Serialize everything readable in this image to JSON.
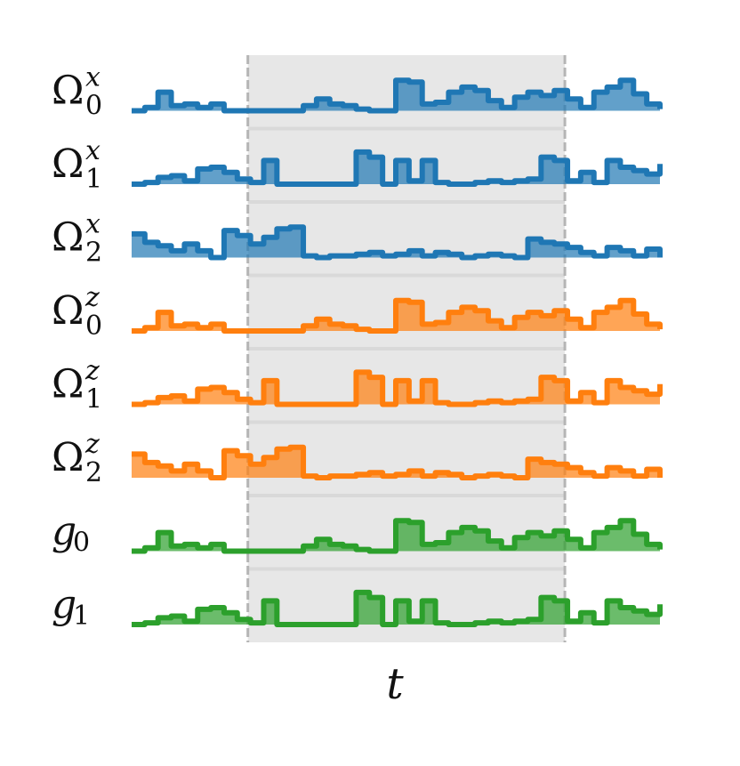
{
  "chart_data": {
    "type": "line",
    "title": "",
    "xlabel": "t",
    "ylabel": "",
    "shaded_region": [
      0.22,
      0.82
    ],
    "x": [
      0,
      0.025,
      0.05,
      0.075,
      0.1,
      0.125,
      0.15,
      0.175,
      0.2,
      0.225,
      0.25,
      0.275,
      0.3,
      0.325,
      0.35,
      0.375,
      0.4,
      0.425,
      0.45,
      0.475,
      0.5,
      0.525,
      0.55,
      0.575,
      0.6,
      0.625,
      0.65,
      0.675,
      0.7,
      0.725,
      0.75,
      0.775,
      0.8,
      0.825,
      0.85,
      0.875,
      0.9,
      0.925,
      0.95,
      0.975,
      1.0
    ],
    "series": [
      {
        "name": "Ω",
        "sup": "x",
        "sub": "0",
        "color": "#1f77b4",
        "values": [
          0,
          0.1,
          0.55,
          0.15,
          0.2,
          0.1,
          0.2,
          0,
          0,
          0,
          0,
          0,
          0,
          0.15,
          0.35,
          0.2,
          0.15,
          0.05,
          0,
          0,
          0.9,
          0.85,
          0.2,
          0.25,
          0.55,
          0.7,
          0.6,
          0.3,
          0.1,
          0.4,
          0.55,
          0.45,
          0.6,
          0.35,
          0.1,
          0.55,
          0.7,
          0.9,
          0.5,
          0.2,
          0.05
        ]
      },
      {
        "name": "Ω",
        "sup": "x",
        "sub": "1",
        "color": "#1f77b4",
        "values": [
          0,
          0.05,
          0.2,
          0.25,
          0.1,
          0.45,
          0.5,
          0.35,
          0.15,
          0.05,
          0.7,
          0,
          0,
          0,
          0,
          0,
          0,
          0.95,
          0.8,
          0,
          0.7,
          0.1,
          0.7,
          0.05,
          0,
          0,
          0.05,
          0.1,
          0.05,
          0.1,
          0.15,
          0.8,
          0.7,
          0.1,
          0.35,
          0.05,
          0.7,
          0.5,
          0.4,
          0.3,
          0.6
        ]
      },
      {
        "name": "Ω",
        "sup": "x",
        "sub": "2",
        "color": "#1f77b4",
        "values": [
          0.7,
          0.45,
          0.35,
          0.2,
          0.4,
          0.2,
          0,
          0.8,
          0.65,
          0.4,
          0.6,
          0.85,
          0.9,
          0.05,
          0,
          0.05,
          0.05,
          0.1,
          0.15,
          0.05,
          0.1,
          0.2,
          0.05,
          0.15,
          0.1,
          0,
          0.05,
          0.1,
          0.05,
          0,
          0.55,
          0.45,
          0.4,
          0.3,
          0.15,
          0.05,
          0.3,
          0.2,
          0.05,
          0.25,
          0
        ]
      },
      {
        "name": "Ω",
        "sup": "z",
        "sub": "0",
        "color": "#ff7f0e",
        "values": [
          0,
          0.1,
          0.55,
          0.15,
          0.2,
          0.1,
          0.2,
          0,
          0,
          0,
          0,
          0,
          0,
          0.15,
          0.35,
          0.2,
          0.15,
          0.05,
          0,
          0,
          0.9,
          0.85,
          0.2,
          0.25,
          0.55,
          0.7,
          0.6,
          0.3,
          0.1,
          0.4,
          0.55,
          0.45,
          0.6,
          0.35,
          0.1,
          0.55,
          0.7,
          0.9,
          0.5,
          0.2,
          0.05
        ]
      },
      {
        "name": "Ω",
        "sup": "z",
        "sub": "1",
        "color": "#ff7f0e",
        "values": [
          0,
          0.05,
          0.2,
          0.25,
          0.1,
          0.45,
          0.5,
          0.35,
          0.15,
          0.05,
          0.7,
          0,
          0,
          0,
          0,
          0,
          0,
          0.95,
          0.8,
          0,
          0.7,
          0.1,
          0.7,
          0.05,
          0,
          0,
          0.05,
          0.1,
          0.05,
          0.1,
          0.15,
          0.8,
          0.7,
          0.1,
          0.35,
          0.05,
          0.7,
          0.5,
          0.4,
          0.3,
          0.6
        ]
      },
      {
        "name": "Ω",
        "sup": "z",
        "sub": "2",
        "color": "#ff7f0e",
        "values": [
          0.7,
          0.45,
          0.35,
          0.2,
          0.4,
          0.2,
          0,
          0.8,
          0.65,
          0.4,
          0.6,
          0.85,
          0.9,
          0.05,
          0,
          0.05,
          0.05,
          0.1,
          0.15,
          0.05,
          0.1,
          0.2,
          0.05,
          0.15,
          0.1,
          0,
          0.05,
          0.1,
          0.05,
          0,
          0.55,
          0.45,
          0.4,
          0.3,
          0.15,
          0.05,
          0.3,
          0.2,
          0.05,
          0.25,
          0
        ]
      },
      {
        "name": "g",
        "sup": "",
        "sub": "0",
        "color": "#2ca02c",
        "values": [
          0,
          0.1,
          0.55,
          0.15,
          0.2,
          0.1,
          0.2,
          0,
          0,
          0,
          0,
          0,
          0,
          0.15,
          0.35,
          0.2,
          0.15,
          0.05,
          0,
          0,
          0.9,
          0.85,
          0.2,
          0.25,
          0.55,
          0.7,
          0.6,
          0.3,
          0.1,
          0.4,
          0.55,
          0.45,
          0.6,
          0.35,
          0.1,
          0.55,
          0.7,
          0.9,
          0.5,
          0.2,
          0.05
        ]
      },
      {
        "name": "g",
        "sup": "",
        "sub": "1",
        "color": "#2ca02c",
        "values": [
          0,
          0.05,
          0.2,
          0.25,
          0.1,
          0.45,
          0.5,
          0.35,
          0.15,
          0.05,
          0.7,
          0,
          0,
          0,
          0,
          0,
          0,
          0.95,
          0.8,
          0,
          0.7,
          0.1,
          0.7,
          0.05,
          0,
          0,
          0.05,
          0.1,
          0.05,
          0.1,
          0.15,
          0.8,
          0.7,
          0.1,
          0.35,
          0.05,
          0.7,
          0.5,
          0.4,
          0.3,
          0.6
        ]
      }
    ]
  }
}
